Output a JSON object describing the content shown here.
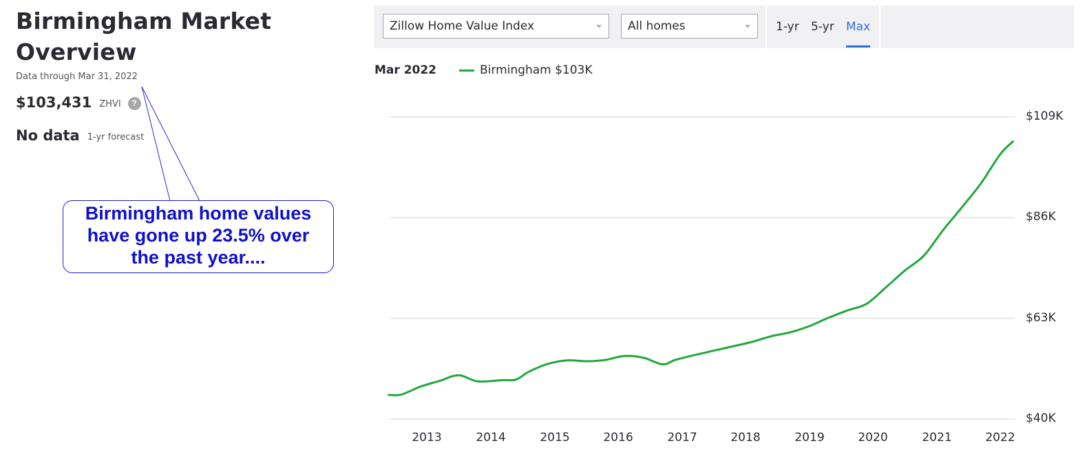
{
  "overview": {
    "title_line1": "Birmingham Market",
    "title_line2": "Overview",
    "data_through": "Data through Mar 31, 2022",
    "zhvi_value": "$103,431",
    "zhvi_label": "ZHVI",
    "help_icon": "?",
    "forecast_value": "No data",
    "forecast_label": "1-yr forecast"
  },
  "callout": {
    "line1": "Birmingham home values",
    "line2": "have gone up 23.5% over",
    "line3": "the past year....",
    "color": "#1010cc"
  },
  "toolbar": {
    "metric_select": "Zillow Home Value Index",
    "home_type_select": "All homes",
    "ranges": [
      "1-yr",
      "5-yr",
      "Max"
    ],
    "active_range": "Max"
  },
  "legend": {
    "date": "Mar 2022",
    "series_label": "Birmingham $103K",
    "series_color": "#1fa83b"
  },
  "chart_data": {
    "type": "line",
    "title": "",
    "xlabel": "",
    "ylabel": "",
    "x_ticks": [
      "2013",
      "2014",
      "2015",
      "2016",
      "2017",
      "2018",
      "2019",
      "2020",
      "2021",
      "2022"
    ],
    "y_ticks": [
      "$40K",
      "$63K",
      "$86K",
      "$109K"
    ],
    "ylim": [
      40000,
      109000
    ],
    "grid": true,
    "legend_position": "top-left",
    "series": [
      {
        "name": "Birmingham",
        "color": "#1fa83b",
        "x": [
          2012.4,
          2012.6,
          2012.9,
          2013.2,
          2013.5,
          2013.8,
          2014.2,
          2014.4,
          2014.6,
          2014.9,
          2015.2,
          2015.5,
          2015.8,
          2016.1,
          2016.4,
          2016.7,
          2016.9,
          2017.2,
          2017.5,
          2017.8,
          2018.1,
          2018.4,
          2018.7,
          2019.0,
          2019.3,
          2019.6,
          2019.9,
          2020.2,
          2020.5,
          2020.8,
          2021.1,
          2021.4,
          2021.7,
          2022.0,
          2022.2
        ],
        "values": [
          45500,
          45600,
          47400,
          48700,
          50000,
          48600,
          48900,
          49000,
          50800,
          52600,
          53400,
          53200,
          53500,
          54400,
          54000,
          52500,
          53500,
          54600,
          55600,
          56600,
          57600,
          58900,
          59800,
          61200,
          63100,
          64800,
          66300,
          70000,
          73900,
          77300,
          83100,
          88400,
          93900,
          100500,
          103400
        ]
      }
    ]
  }
}
